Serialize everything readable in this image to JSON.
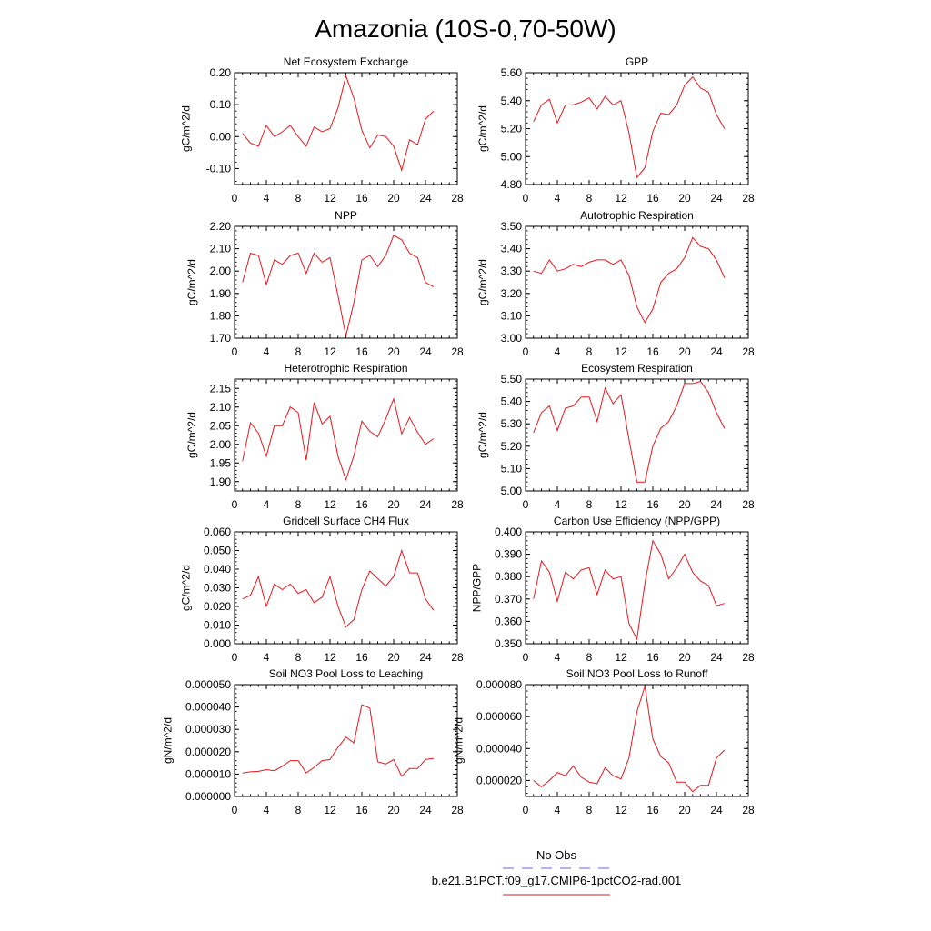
{
  "title": "Amazonia (10S-0,70-50W)",
  "legend": [
    {
      "label": "No Obs",
      "color": "#6666dd",
      "style": "dashed"
    },
    {
      "label": "b.e21.B1PCT.f09_g17.CMIP6-1pctCO2-rad.001",
      "color": "#e8161b",
      "style": "solid"
    }
  ],
  "chart_data": [
    {
      "type": "line",
      "title": "Net Ecosystem Exchange",
      "ylabel": "gC/m^2/d",
      "xlim": [
        0,
        28
      ],
      "xticks": [
        0,
        4,
        8,
        12,
        16,
        20,
        24,
        28
      ],
      "xticklabels": [
        "0",
        "4",
        "8",
        "12",
        "16",
        "20",
        "24",
        "28"
      ],
      "ylim": [
        -0.15,
        0.2
      ],
      "yticks": [
        -0.1,
        0,
        0.1,
        0.2
      ],
      "yticklabels": [
        "-0.10",
        "0.00",
        "0.10",
        "0.20"
      ],
      "x": [
        1,
        2,
        3,
        4,
        5,
        6,
        7,
        8,
        9,
        10,
        11,
        12,
        13,
        14,
        15,
        16,
        17,
        18,
        19,
        20,
        21,
        22,
        23,
        24,
        25
      ],
      "series": [
        {
          "values": [
            0.01,
            -0.02,
            -0.03,
            0.035,
            0.0,
            0.015,
            0.035,
            0.0,
            -0.03,
            0.03,
            0.015,
            0.025,
            0.09,
            0.19,
            0.12,
            0.02,
            -0.035,
            0.005,
            0.0,
            -0.03,
            -0.105,
            -0.01,
            -0.025,
            0.055,
            0.08
          ]
        }
      ]
    },
    {
      "type": "line",
      "title": "GPP",
      "ylabel": "gC/m^2/d",
      "xlim": [
        0,
        28
      ],
      "xticks": [
        0,
        4,
        8,
        12,
        16,
        20,
        24,
        28
      ],
      "xticklabels": [
        "0",
        "4",
        "8",
        "12",
        "16",
        "20",
        "24",
        "28"
      ],
      "ylim": [
        4.8,
        5.6
      ],
      "yticks": [
        4.8,
        5.0,
        5.2,
        5.4,
        5.6
      ],
      "yticklabels": [
        "4.80",
        "5.00",
        "5.20",
        "5.40",
        "5.60"
      ],
      "x": [
        1,
        2,
        3,
        4,
        5,
        6,
        7,
        8,
        9,
        10,
        11,
        12,
        13,
        14,
        15,
        16,
        17,
        18,
        19,
        20,
        21,
        22,
        23,
        24,
        25
      ],
      "series": [
        {
          "values": [
            5.25,
            5.37,
            5.41,
            5.24,
            5.37,
            5.37,
            5.39,
            5.42,
            5.34,
            5.43,
            5.37,
            5.4,
            5.17,
            4.85,
            4.92,
            5.18,
            5.31,
            5.3,
            5.37,
            5.51,
            5.57,
            5.49,
            5.46,
            5.3,
            5.2
          ]
        }
      ]
    },
    {
      "type": "line",
      "title": "NPP",
      "ylabel": "gC/m^2/d",
      "xlim": [
        0,
        28
      ],
      "xticks": [
        0,
        4,
        8,
        12,
        16,
        20,
        24,
        28
      ],
      "xticklabels": [
        "0",
        "4",
        "8",
        "12",
        "16",
        "20",
        "24",
        "28"
      ],
      "ylim": [
        1.7,
        2.2
      ],
      "yticks": [
        1.7,
        1.8,
        1.9,
        2.0,
        2.1,
        2.2
      ],
      "yticklabels": [
        "1.70",
        "1.80",
        "1.90",
        "2.00",
        "2.10",
        "2.20"
      ],
      "x": [
        1,
        2,
        3,
        4,
        5,
        6,
        7,
        8,
        9,
        10,
        11,
        12,
        13,
        14,
        15,
        16,
        17,
        18,
        19,
        20,
        21,
        22,
        23,
        24,
        25
      ],
      "series": [
        {
          "values": [
            1.95,
            2.08,
            2.07,
            1.94,
            2.05,
            2.03,
            2.07,
            2.08,
            1.99,
            2.08,
            2.04,
            2.06,
            1.89,
            1.71,
            1.86,
            2.05,
            2.07,
            2.02,
            2.07,
            2.16,
            2.14,
            2.08,
            2.06,
            1.95,
            1.93
          ]
        }
      ]
    },
    {
      "type": "line",
      "title": "Autotrophic Respiration",
      "ylabel": "gC/m^2/d",
      "xlim": [
        0,
        28
      ],
      "xticks": [
        0,
        4,
        8,
        12,
        16,
        20,
        24,
        28
      ],
      "xticklabels": [
        "0",
        "4",
        "8",
        "12",
        "16",
        "20",
        "24",
        "28"
      ],
      "ylim": [
        3.0,
        3.5
      ],
      "yticks": [
        3.0,
        3.1,
        3.2,
        3.3,
        3.4,
        3.5
      ],
      "yticklabels": [
        "3.00",
        "3.10",
        "3.20",
        "3.30",
        "3.40",
        "3.50"
      ],
      "x": [
        1,
        2,
        3,
        4,
        5,
        6,
        7,
        8,
        9,
        10,
        11,
        12,
        13,
        14,
        15,
        16,
        17,
        18,
        19,
        20,
        21,
        22,
        23,
        24,
        25
      ],
      "series": [
        {
          "values": [
            3.3,
            3.29,
            3.35,
            3.3,
            3.31,
            3.33,
            3.32,
            3.34,
            3.35,
            3.35,
            3.33,
            3.35,
            3.28,
            3.14,
            3.07,
            3.13,
            3.25,
            3.29,
            3.31,
            3.36,
            3.45,
            3.41,
            3.4,
            3.35,
            3.27
          ]
        }
      ]
    },
    {
      "type": "line",
      "title": "Heterotrophic Respiration",
      "ylabel": "gC/m^2/d",
      "xlim": [
        0,
        28
      ],
      "xticks": [
        0,
        4,
        8,
        12,
        16,
        20,
        24,
        28
      ],
      "xticklabels": [
        "0",
        "4",
        "8",
        "12",
        "16",
        "20",
        "24",
        "28"
      ],
      "ylim": [
        1.875,
        2.175
      ],
      "yticks": [
        1.9,
        1.95,
        2.0,
        2.05,
        2.1,
        2.15
      ],
      "yticklabels": [
        "1.90",
        "1.95",
        "2.00",
        "2.05",
        "2.10",
        "2.15"
      ],
      "x": [
        1,
        2,
        3,
        4,
        5,
        6,
        7,
        8,
        9,
        10,
        11,
        12,
        13,
        14,
        15,
        16,
        17,
        18,
        19,
        20,
        21,
        22,
        23,
        24,
        25
      ],
      "series": [
        {
          "values": [
            1.955,
            2.058,
            2.03,
            1.968,
            2.05,
            2.05,
            2.1,
            2.085,
            1.958,
            2.112,
            2.055,
            2.075,
            1.968,
            1.905,
            1.97,
            2.062,
            2.035,
            2.02,
            2.068,
            2.122,
            2.028,
            2.072,
            2.032,
            2.0,
            2.015
          ]
        }
      ]
    },
    {
      "type": "line",
      "title": "Ecosystem Respiration",
      "ylabel": "gC/m^2/d",
      "xlim": [
        0,
        28
      ],
      "xticks": [
        0,
        4,
        8,
        12,
        16,
        20,
        24,
        28
      ],
      "xticklabels": [
        "0",
        "4",
        "8",
        "12",
        "16",
        "20",
        "24",
        "28"
      ],
      "ylim": [
        5.0,
        5.5
      ],
      "yticks": [
        5.0,
        5.1,
        5.2,
        5.3,
        5.4,
        5.5
      ],
      "yticklabels": [
        "5.00",
        "5.10",
        "5.20",
        "5.30",
        "5.40",
        "5.50"
      ],
      "x": [
        1,
        2,
        3,
        4,
        5,
        6,
        7,
        8,
        9,
        10,
        11,
        12,
        13,
        14,
        15,
        16,
        17,
        18,
        19,
        20,
        21,
        22,
        23,
        24,
        25
      ],
      "series": [
        {
          "values": [
            5.26,
            5.35,
            5.38,
            5.27,
            5.37,
            5.38,
            5.42,
            5.42,
            5.31,
            5.46,
            5.39,
            5.43,
            5.23,
            5.04,
            5.04,
            5.2,
            5.28,
            5.31,
            5.38,
            5.48,
            5.48,
            5.49,
            5.44,
            5.35,
            5.28
          ]
        }
      ]
    },
    {
      "type": "line",
      "title": "Gridcell Surface CH4 Flux",
      "ylabel": "gC/m^2/d",
      "xlim": [
        0,
        28
      ],
      "xticks": [
        0,
        4,
        8,
        12,
        16,
        20,
        24,
        28
      ],
      "xticklabels": [
        "0",
        "4",
        "8",
        "12",
        "16",
        "20",
        "24",
        "28"
      ],
      "ylim": [
        0,
        0.06
      ],
      "yticks": [
        0,
        0.01,
        0.02,
        0.03,
        0.04,
        0.05,
        0.06
      ],
      "yticklabels": [
        "0.000",
        "0.010",
        "0.020",
        "0.030",
        "0.040",
        "0.050",
        "0.060"
      ],
      "x": [
        1,
        2,
        3,
        4,
        5,
        6,
        7,
        8,
        9,
        10,
        11,
        12,
        13,
        14,
        15,
        16,
        17,
        18,
        19,
        20,
        21,
        22,
        23,
        24,
        25
      ],
      "series": [
        {
          "values": [
            0.024,
            0.026,
            0.036,
            0.02,
            0.032,
            0.029,
            0.032,
            0.027,
            0.029,
            0.022,
            0.025,
            0.036,
            0.02,
            0.009,
            0.013,
            0.029,
            0.039,
            0.035,
            0.031,
            0.036,
            0.05,
            0.038,
            0.038,
            0.024,
            0.018
          ]
        }
      ]
    },
    {
      "type": "line",
      "title": "Carbon Use Efficiency (NPP/GPP)",
      "ylabel": "NPP/GPP",
      "xlim": [
        0,
        28
      ],
      "xticks": [
        0,
        4,
        8,
        12,
        16,
        20,
        24,
        28
      ],
      "xticklabels": [
        "0",
        "4",
        "8",
        "12",
        "16",
        "20",
        "24",
        "28"
      ],
      "ylim": [
        0.35,
        0.4
      ],
      "yticks": [
        0.35,
        0.36,
        0.37,
        0.38,
        0.39,
        0.4
      ],
      "yticklabels": [
        "0.350",
        "0.360",
        "0.370",
        "0.380",
        "0.390",
        "0.400"
      ],
      "x": [
        1,
        2,
        3,
        4,
        5,
        6,
        7,
        8,
        9,
        10,
        11,
        12,
        13,
        14,
        15,
        16,
        17,
        18,
        19,
        20,
        21,
        22,
        23,
        24,
        25
      ],
      "series": [
        {
          "values": [
            0.37,
            0.387,
            0.382,
            0.369,
            0.382,
            0.379,
            0.383,
            0.384,
            0.372,
            0.383,
            0.379,
            0.38,
            0.359,
            0.352,
            0.377,
            0.396,
            0.39,
            0.379,
            0.384,
            0.39,
            0.382,
            0.378,
            0.376,
            0.367,
            0.368
          ]
        }
      ]
    },
    {
      "type": "line",
      "title": "Soil NO3 Pool Loss to Leaching",
      "ylabel": "gN/m^2/d",
      "xlim": [
        0,
        28
      ],
      "xticks": [
        0,
        4,
        8,
        12,
        16,
        20,
        24,
        28
      ],
      "xticklabels": [
        "0",
        "4",
        "8",
        "12",
        "16",
        "20",
        "24",
        "28"
      ],
      "ylim": [
        0,
        5e-05
      ],
      "yticks": [
        0,
        1e-05,
        2e-05,
        3e-05,
        4e-05,
        5e-05
      ],
      "yticklabels": [
        "0.000000",
        "0.000010",
        "0.000020",
        "0.000030",
        "0.000040",
        "0.000050"
      ],
      "x": [
        1,
        2,
        3,
        4,
        5,
        6,
        7,
        8,
        9,
        10,
        11,
        12,
        13,
        14,
        15,
        16,
        17,
        18,
        19,
        20,
        21,
        22,
        23,
        24,
        25
      ],
      "series": [
        {
          "values": [
            1.05e-05,
            1.1e-05,
            1.12e-05,
            1.2e-05,
            1.15e-05,
            1.35e-05,
            1.6e-05,
            1.6e-05,
            1.05e-05,
            1.3e-05,
            1.6e-05,
            1.65e-05,
            2.2e-05,
            2.65e-05,
            2.4e-05,
            4.1e-05,
            3.95e-05,
            1.55e-05,
            1.45e-05,
            1.65e-05,
            9e-06,
            1.25e-05,
            1.25e-05,
            1.65e-05,
            1.7e-05
          ]
        }
      ]
    },
    {
      "type": "line",
      "title": "Soil NO3 Pool Loss to Runoff",
      "ylabel": "gN/m^2/d",
      "xlim": [
        0,
        28
      ],
      "xticks": [
        0,
        4,
        8,
        12,
        16,
        20,
        24,
        28
      ],
      "xticklabels": [
        "0",
        "4",
        "8",
        "12",
        "16",
        "20",
        "24",
        "28"
      ],
      "ylim": [
        1e-05,
        8e-05
      ],
      "yticks": [
        2e-05,
        4e-05,
        6e-05,
        8e-05
      ],
      "yticklabels": [
        "0.000020",
        "0.000040",
        "0.000060",
        "0.000080"
      ],
      "x": [
        1,
        2,
        3,
        4,
        5,
        6,
        7,
        8,
        9,
        10,
        11,
        12,
        13,
        14,
        15,
        16,
        17,
        18,
        19,
        20,
        21,
        22,
        23,
        24,
        25
      ],
      "series": [
        {
          "values": [
            2e-05,
            1.6e-05,
            2e-05,
            2.5e-05,
            2.3e-05,
            2.9e-05,
            2.2e-05,
            1.9e-05,
            1.8e-05,
            2.8e-05,
            2.3e-05,
            2.1e-05,
            3.4e-05,
            6.3e-05,
            7.9e-05,
            4.6e-05,
            3.5e-05,
            3.1e-05,
            1.9e-05,
            1.9e-05,
            1.3e-05,
            1.7e-05,
            1.7e-05,
            3.4e-05,
            3.9e-05
          ]
        }
      ]
    }
  ]
}
